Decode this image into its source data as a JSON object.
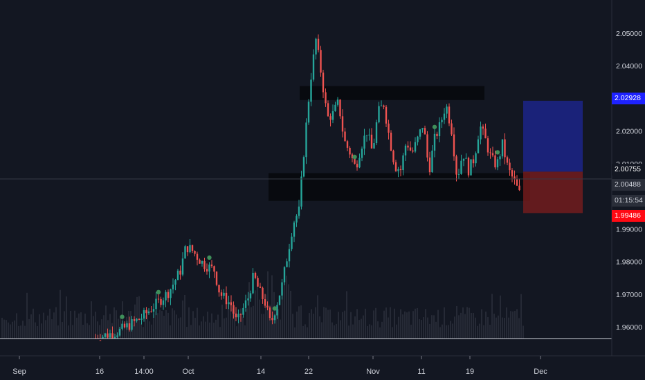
{
  "chart_data": {
    "type": "candlestick",
    "title": "",
    "x_labels": [
      "Sep",
      "16",
      "14:00",
      "Oct",
      "14",
      "22",
      "Nov",
      "11",
      "19",
      "Dec"
    ],
    "y_ticks": [
      "2.05000",
      "2.04000",
      "2.03000",
      "2.02000",
      "2.01000",
      "1.99000",
      "1.98000",
      "1.97000",
      "1.96000"
    ],
    "y_range": [
      1.95,
      2.056
    ],
    "series": [
      {
        "values": [
          [
            0,
            1.9566
          ],
          [
            4,
            1.9585
          ],
          [
            8,
            1.9626
          ],
          [
            11,
            1.9674
          ],
          [
            13,
            1.9708
          ],
          [
            15,
            1.9772
          ],
          [
            16,
            1.9846
          ],
          [
            17,
            1.9836
          ],
          [
            19,
            1.9794
          ],
          [
            21,
            1.9774
          ],
          [
            22,
            1.9702
          ],
          [
            24,
            1.9668
          ],
          [
            25,
            1.9611
          ],
          [
            27,
            1.9689
          ],
          [
            28,
            1.9758
          ],
          [
            29,
            1.9708
          ],
          [
            30,
            1.9674
          ],
          [
            31,
            1.9606
          ],
          [
            33,
            1.9728
          ],
          [
            35,
            1.992
          ],
          [
            36,
            1.9955
          ],
          [
            37,
            2.0165
          ],
          [
            38,
            2.0351
          ],
          [
            39,
            2.048
          ],
          [
            40,
            2.0369
          ],
          [
            41,
            2.024
          ],
          [
            42,
            2.0252
          ],
          [
            43,
            2.0288
          ],
          [
            44,
            2.017
          ],
          [
            45,
            2.0135
          ],
          [
            46,
            2.0087
          ],
          [
            47,
            2.0154
          ],
          [
            48,
            2.0199
          ],
          [
            49,
            2.0135
          ],
          [
            50,
            2.0257
          ],
          [
            51,
            2.0283
          ],
          [
            52,
            2.0179
          ],
          [
            53,
            2.0092
          ],
          [
            54,
            2.0082
          ],
          [
            55,
            2.0169
          ],
          [
            56,
            2.0131
          ],
          [
            57,
            2.0175
          ],
          [
            58,
            2.0224
          ],
          [
            59,
            2.0077
          ],
          [
            60,
            2.0175
          ],
          [
            61,
            2.0219
          ],
          [
            62,
            2.0283
          ],
          [
            63,
            2.0204
          ],
          [
            64,
            2.0054
          ],
          [
            65,
            2.0136
          ],
          [
            66,
            2.0081
          ],
          [
            67,
            2.0116
          ],
          [
            68,
            2.0218
          ],
          [
            69,
            2.0172
          ],
          [
            70,
            2.0115
          ],
          [
            71,
            2.0094
          ],
          [
            72,
            2.0159
          ],
          [
            73,
            2.0083
          ],
          [
            74,
            2.0049
          ],
          [
            75,
            2.0009
          ]
        ]
      }
    ],
    "drawings": {
      "resistance_zone": [
        2.0295,
        2.0338
      ],
      "support_zone": [
        1.9986,
        2.0071
      ],
      "target_zone": [
        2.00755,
        2.02928
      ],
      "stop_zone": [
        1.99486,
        2.00755
      ]
    }
  },
  "price_labels": {
    "target": "2.02928",
    "entry": "2.00755",
    "last": "2.00488",
    "countdown": "01:15:54",
    "stop": "1.99486"
  },
  "colors": {
    "background": "#131722",
    "up": "#26a69a",
    "down": "#ef5350",
    "target": "#1e22ff",
    "stop": "#ff0a14"
  }
}
